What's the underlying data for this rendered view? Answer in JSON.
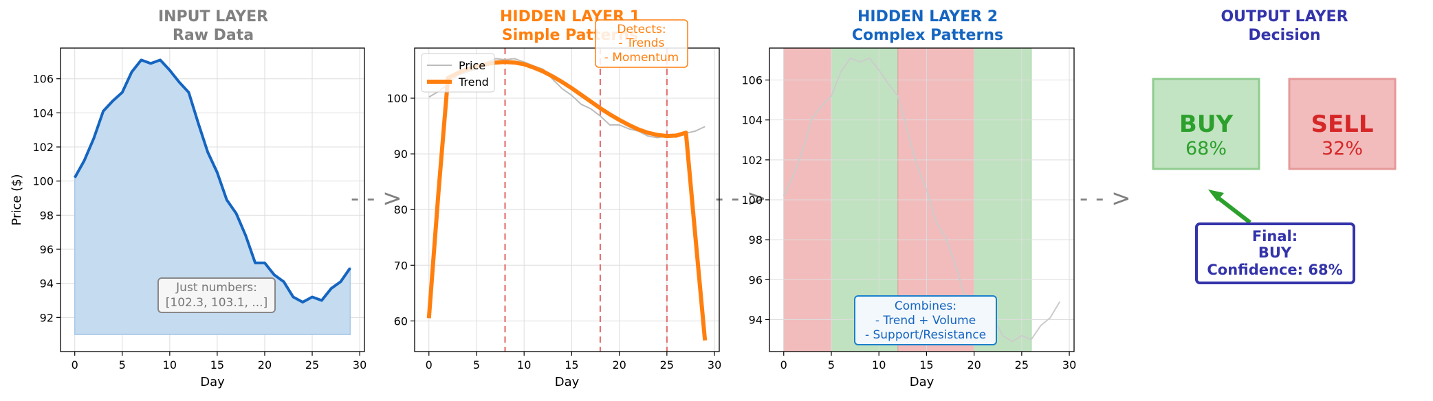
{
  "panels": {
    "input": {
      "title": "INPUT LAYER",
      "subtitle": "Raw Data",
      "color": "#808080"
    },
    "hidden1": {
      "title": "HIDDEN LAYER 1",
      "subtitle": "Simple Patterns",
      "color": "#ff7f0e"
    },
    "hidden2": {
      "title": "HIDDEN LAYER 2",
      "subtitle": "Complex Patterns",
      "color": "#1565c0"
    },
    "output": {
      "title": "OUTPUT LAYER",
      "subtitle": "Decision",
      "color": "#3333aa"
    }
  },
  "arrows": [
    "- - >",
    "- - >",
    "- - >"
  ],
  "chart_data": [
    {
      "type": "area",
      "x": [
        0,
        1,
        2,
        3,
        4,
        5,
        6,
        7,
        8,
        9,
        10,
        11,
        12,
        13,
        14,
        15,
        16,
        17,
        18,
        19,
        20,
        21,
        22,
        23,
        24,
        25,
        26,
        27,
        28,
        29
      ],
      "values": [
        100.2,
        101.2,
        102.5,
        104.1,
        104.7,
        105.2,
        106.4,
        107.1,
        106.9,
        107.1,
        106.5,
        105.8,
        105.2,
        103.4,
        101.7,
        100.5,
        98.9,
        98.1,
        96.8,
        95.2,
        95.2,
        94.5,
        94.1,
        93.2,
        92.9,
        93.2,
        93.0,
        93.7,
        94.1,
        94.9
      ],
      "fill_base": 91,
      "xlabel": "Day",
      "ylabel": "Price ($)",
      "xlim": [
        -1.5,
        30.5
      ],
      "ylim": [
        90,
        107.8
      ],
      "xticks": [
        0,
        5,
        10,
        15,
        20,
        25,
        30
      ],
      "yticks": [
        92,
        94,
        96,
        98,
        100,
        102,
        104,
        106
      ],
      "grid": true,
      "line_color": "#1565c0",
      "fill_color": "#c4dbf0",
      "annotation": [
        "Just numbers:",
        "[102.3, 103.1, ...]"
      ]
    },
    {
      "type": "line",
      "x": [
        0,
        1,
        2,
        3,
        4,
        5,
        6,
        7,
        8,
        9,
        10,
        11,
        12,
        13,
        14,
        15,
        16,
        17,
        18,
        19,
        20,
        21,
        22,
        23,
        24,
        25,
        26,
        27,
        28,
        29
      ],
      "series": [
        {
          "name": "Price",
          "color": "#bbbbbb",
          "values": [
            100.2,
            101.2,
            102.5,
            104.1,
            104.7,
            105.2,
            106.4,
            107.1,
            106.9,
            107.1,
            106.5,
            105.8,
            105.2,
            103.4,
            101.7,
            100.5,
            98.9,
            98.1,
            96.8,
            95.2,
            95.2,
            94.5,
            94.1,
            93.2,
            92.9,
            93.2,
            93.0,
            93.7,
            94.1,
            94.9
          ]
        },
        {
          "name": "Trend",
          "color": "#ff7f0e",
          "values": [
            60.5,
            83,
            103.6,
            104.5,
            105.2,
            105.7,
            106.1,
            106.4,
            106.5,
            106.4,
            106.1,
            105.5,
            104.8,
            103.9,
            102.9,
            101.8,
            100.6,
            99.4,
            98.2,
            97.1,
            96.1,
            95.2,
            94.4,
            93.8,
            93.4,
            93.2,
            93.3,
            93.8,
            75,
            56.5
          ]
        }
      ],
      "vlines": [
        8,
        18,
        25
      ],
      "vline_color": "#e57373",
      "xlabel": "Day",
      "xlim": [
        -1.5,
        30.5
      ],
      "ylim": [
        54.5,
        109
      ],
      "xticks": [
        0,
        5,
        10,
        15,
        20,
        25,
        30
      ],
      "yticks": [
        60,
        70,
        80,
        90,
        100
      ],
      "legend": "top-left",
      "grid": true,
      "annotation": [
        "Detects:",
        "- Trends",
        "- Momentum"
      ]
    },
    {
      "type": "line",
      "x": [
        0,
        1,
        2,
        3,
        4,
        5,
        6,
        7,
        8,
        9,
        10,
        11,
        12,
        13,
        14,
        15,
        16,
        17,
        18,
        19,
        20,
        21,
        22,
        23,
        24,
        25,
        26,
        27,
        28,
        29
      ],
      "values": [
        100.2,
        101.2,
        102.5,
        104.1,
        104.7,
        105.2,
        106.4,
        107.1,
        106.9,
        107.1,
        106.5,
        105.8,
        105.2,
        103.4,
        101.7,
        100.5,
        98.9,
        98.1,
        96.8,
        95.2,
        95.2,
        94.5,
        94.1,
        93.2,
        92.9,
        93.2,
        93.0,
        93.7,
        94.1,
        94.9
      ],
      "line_color": "#cccccc",
      "bands": [
        {
          "from": 0,
          "to": 5,
          "kind": "sell"
        },
        {
          "from": 5,
          "to": 12,
          "kind": "buy"
        },
        {
          "from": 12,
          "to": 20,
          "kind": "sell"
        },
        {
          "from": 20,
          "to": 26,
          "kind": "buy"
        }
      ],
      "band_colors": {
        "sell": "#f2bcbc",
        "buy": "#c0e2c0"
      },
      "xlabel": "Day",
      "xlim": [
        -1.5,
        30.5
      ],
      "ylim": [
        92.4,
        107.6
      ],
      "xticks": [
        0,
        5,
        10,
        15,
        20,
        25,
        30
      ],
      "yticks": [
        94,
        96,
        98,
        100,
        102,
        104,
        106
      ],
      "grid": true,
      "annotation": [
        "Combines:",
        "- Trend + Volume",
        "- Support/Resistance"
      ]
    }
  ],
  "output": {
    "buy": {
      "label": "BUY",
      "value": "68%",
      "color": "#2ca02c"
    },
    "sell": {
      "label": "SELL",
      "value": "32%",
      "color": "#d62728"
    },
    "final_box": [
      "Final:",
      "BUY",
      "Confidence: 68%"
    ]
  }
}
